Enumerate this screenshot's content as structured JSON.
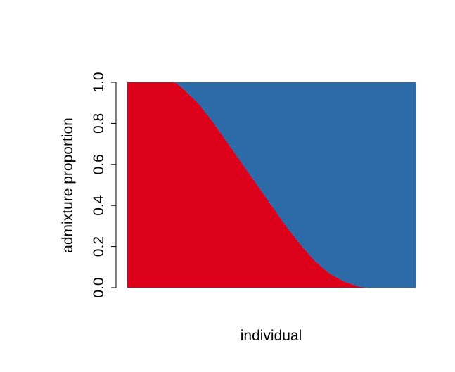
{
  "chart_data": {
    "type": "bar",
    "stacked": true,
    "title": "",
    "xlabel": "individual",
    "ylabel": "admixture proportion",
    "ylim": [
      0,
      1
    ],
    "yticks": [
      "0.0",
      "0.2",
      "0.4",
      "0.6",
      "0.8",
      "1.0"
    ],
    "grid": false,
    "legend": "none",
    "n_individuals": 200,
    "x": [
      0.0,
      0.16,
      0.17,
      0.2,
      0.25,
      0.3,
      0.35,
      0.4,
      0.45,
      0.5,
      0.55,
      0.6,
      0.65,
      0.7,
      0.75,
      0.8,
      0.83,
      0.84,
      1.0
    ],
    "series": [
      {
        "color": "#DC001A",
        "values": [
          1.0,
          1.0,
          0.995,
          0.96,
          0.89,
          0.8,
          0.7,
          0.6,
          0.5,
          0.4,
          0.3,
          0.21,
          0.13,
          0.07,
          0.03,
          0.006,
          0.0,
          0.0,
          0.0
        ]
      },
      {
        "color": "#2D6BA8",
        "values": [
          0.0,
          0.0,
          0.005,
          0.04,
          0.11,
          0.2,
          0.3,
          0.4,
          0.5,
          0.6,
          0.7,
          0.79,
          0.87,
          0.93,
          0.97,
          0.994,
          1.0,
          1.0,
          1.0
        ]
      }
    ]
  }
}
